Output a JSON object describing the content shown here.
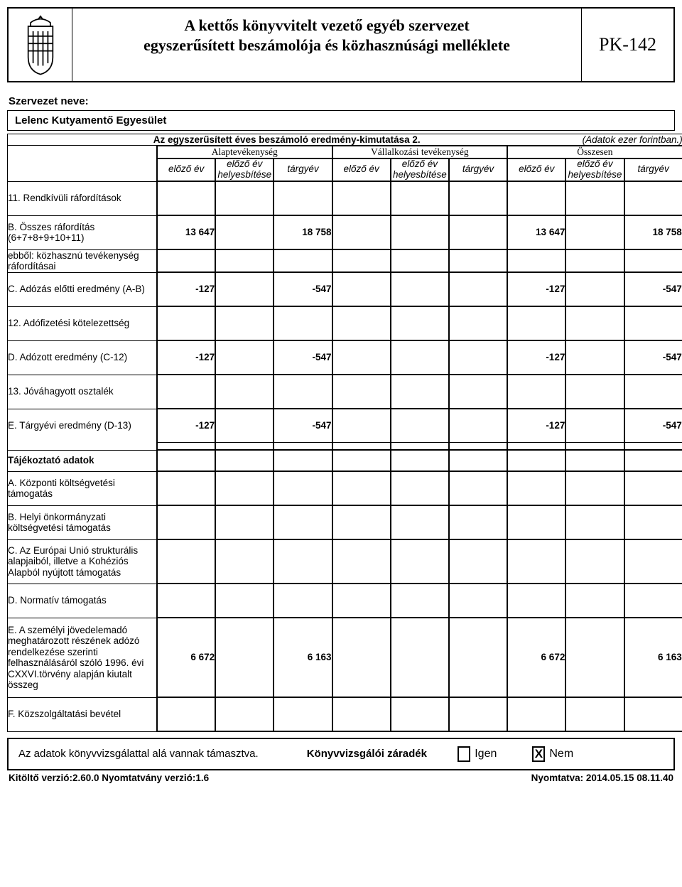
{
  "header": {
    "title_line1": "A kettős könyvvitelt vezető egyéb szervezet",
    "title_line2": "egyszerűsített beszámolója és közhasznúsági melléklete",
    "form_code": "PK-142"
  },
  "org": {
    "label": "Szervezet neve:",
    "name": "Lelenc Kutyamentő Egyesület"
  },
  "section": {
    "title": "Az egyszerűsített éves beszámoló eredmény-kimutatása 2.",
    "note": "(Adatok ezer forintban.)"
  },
  "group_headers": {
    "g1": "Alaptevékenység",
    "g2": "Vállalkozási tevékenység",
    "g3": "Összesen"
  },
  "sub_headers": {
    "c1": "előző év",
    "c2": "előző év helyesbítése",
    "c3": "tárgyév"
  },
  "rows": [
    {
      "label": "11. Rendkívüli ráfordítások",
      "values": [
        "",
        "",
        "",
        "",
        "",
        "",
        "",
        "",
        ""
      ]
    },
    {
      "label": "B. Összes ráfordítás (6+7+8+9+10+11)",
      "values": [
        "13 647",
        "",
        "18 758",
        "",
        "",
        "",
        "13 647",
        "",
        "18 758"
      ]
    },
    {
      "label": "ebből: közhasznú tevékenység ráfordításai",
      "values": [
        "",
        "",
        "",
        "",
        "",
        "",
        "",
        "",
        ""
      ],
      "flat": true
    },
    {
      "label": "C. Adózás előtti eredmény (A-B)",
      "values": [
        "-127",
        "",
        "-547",
        "",
        "",
        "",
        "-127",
        "",
        "-547"
      ]
    },
    {
      "label": "12. Adófizetési kötelezettség",
      "values": [
        "",
        "",
        "",
        "",
        "",
        "",
        "",
        "",
        ""
      ]
    },
    {
      "label": "D. Adózott eredmény (C-12)",
      "values": [
        "-127",
        "",
        "-547",
        "",
        "",
        "",
        "-127",
        "",
        "-547"
      ]
    },
    {
      "label": "13. Jóváhagyott osztalék",
      "values": [
        "",
        "",
        "",
        "",
        "",
        "",
        "",
        "",
        ""
      ]
    },
    {
      "label": "E. Tárgyévi eredmény (D-13)",
      "values": [
        "-127",
        "",
        "-547",
        "",
        "",
        "",
        "-127",
        "",
        "-547"
      ]
    }
  ],
  "info_header": "Tájékoztató adatok",
  "info_rows": [
    {
      "label": "A. Központi költségvetési támogatás",
      "values": [
        "",
        "",
        "",
        "",
        "",
        "",
        "",
        "",
        ""
      ]
    },
    {
      "label": "B. Helyi önkormányzati költségvetési támogatás",
      "values": [
        "",
        "",
        "",
        "",
        "",
        "",
        "",
        "",
        ""
      ]
    },
    {
      "label": "C. Az Európai Unió strukturális alapjaiból, illetve a Kohéziós Alapból nyújtott támogatás",
      "values": [
        "",
        "",
        "",
        "",
        "",
        "",
        "",
        "",
        ""
      ],
      "tall": true
    },
    {
      "label": "D. Normatív támogatás",
      "values": [
        "",
        "",
        "",
        "",
        "",
        "",
        "",
        "",
        ""
      ]
    },
    {
      "label": "E. A személyi jövedelemadó meghatározott részének adózó rendelkezése szerinti felhasználásáról szóló 1996. évi CXXVI.törvény alapján kiutalt összeg",
      "values": [
        "6 672",
        "",
        "6 163",
        "",
        "",
        "",
        "6 672",
        "",
        "6 163"
      ],
      "xtall": true
    },
    {
      "label": "F. Közszolgáltatási bevétel",
      "values": [
        "",
        "",
        "",
        "",
        "",
        "",
        "",
        "",
        ""
      ]
    }
  ],
  "footer": {
    "statement": "Az adatok könyvvizsgálattal alá vannak támasztva.",
    "heading": "Könyvvizsgálói záradék",
    "yes": "Igen",
    "no": "Nem",
    "checked": "no"
  },
  "version": {
    "left": "Kitöltő verzió:2.60.0 Nyomtatvány verzió:1.6",
    "right": "Nyomtatva: 2014.05.15 08.11.40"
  },
  "colors": {
    "border": "#000000",
    "background": "#ffffff",
    "text": "#000000"
  }
}
